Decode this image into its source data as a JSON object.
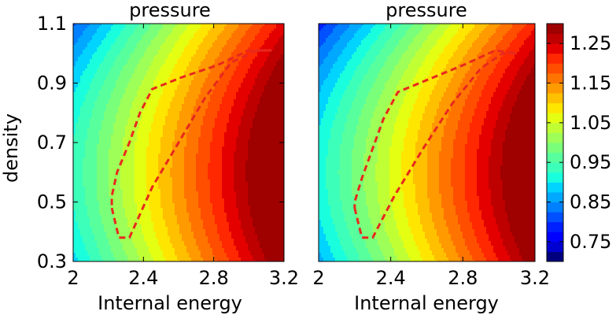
{
  "chart_data": [
    {
      "type": "heatmap",
      "subtype": "filled-contour",
      "title": "pressure",
      "xlabel": "Internal energy",
      "ylabel": "density",
      "xlim": [
        2.0,
        3.2
      ],
      "ylim": [
        0.3,
        1.1
      ],
      "xticks": [
        "2",
        "2.4",
        "2.8",
        "3.2"
      ],
      "yticks": [
        "0.3",
        "0.5",
        "0.7",
        "0.9",
        "1.1"
      ],
      "field": {
        "at_2_0": 0.9,
        "slope_x": 0.35,
        "curvature_y": 0.45,
        "center_y": 0.6,
        "offset_y": 0.03
      },
      "contour_line": {
        "style": "dashed",
        "color": "#e8281e",
        "points": [
          [
            2.22,
            0.48
          ],
          [
            2.26,
            0.38
          ],
          [
            2.32,
            0.38
          ],
          [
            2.45,
            0.55
          ],
          [
            2.6,
            0.7
          ],
          [
            2.75,
            0.85
          ],
          [
            2.9,
            0.97
          ],
          [
            3.05,
            1.01
          ],
          [
            3.13,
            1.01
          ],
          [
            3.0,
            1.01
          ],
          [
            2.82,
            0.96
          ],
          [
            2.62,
            0.92
          ],
          [
            2.45,
            0.88
          ],
          [
            2.38,
            0.8
          ],
          [
            2.32,
            0.7
          ],
          [
            2.25,
            0.6
          ],
          [
            2.22,
            0.52
          ],
          [
            2.22,
            0.48
          ]
        ]
      }
    },
    {
      "type": "heatmap",
      "subtype": "filled-contour",
      "title": "pressure",
      "xlabel": "Internal energy",
      "ylabel": "",
      "xlim": [
        2.0,
        3.2
      ],
      "ylim": [
        0.3,
        1.1
      ],
      "xticks": [
        "2",
        "2.4",
        "2.8",
        "3.2"
      ],
      "yticks": [],
      "field": {
        "at_2_0": 0.88,
        "slope_x": 0.36,
        "curvature_y": 0.5,
        "center_y": 0.6,
        "offset_y": 0.03
      },
      "contour_line": {
        "style": "dashed",
        "color": "#e8281e",
        "points": [
          [
            2.2,
            0.48
          ],
          [
            2.24,
            0.38
          ],
          [
            2.3,
            0.38
          ],
          [
            2.42,
            0.52
          ],
          [
            2.58,
            0.68
          ],
          [
            2.74,
            0.83
          ],
          [
            2.9,
            0.95
          ],
          [
            3.02,
            1.0
          ],
          [
            3.1,
            1.0
          ],
          [
            2.98,
            1.01
          ],
          [
            2.8,
            0.96
          ],
          [
            2.6,
            0.91
          ],
          [
            2.44,
            0.87
          ],
          [
            2.36,
            0.78
          ],
          [
            2.3,
            0.68
          ],
          [
            2.24,
            0.58
          ],
          [
            2.2,
            0.5
          ],
          [
            2.2,
            0.48
          ]
        ]
      }
    }
  ],
  "colorbar": {
    "ticks": [
      "0.75",
      "0.85",
      "0.95",
      "1.05",
      "1.15",
      "1.25"
    ],
    "min": 0.7,
    "max": 1.3,
    "levels": [
      {
        "value": 0.7,
        "color": "#00007f"
      },
      {
        "value": 0.725,
        "color": "#0000d0"
      },
      {
        "value": 0.75,
        "color": "#0000ff"
      },
      {
        "value": 0.775,
        "color": "#0020ff"
      },
      {
        "value": 0.8,
        "color": "#0050ff"
      },
      {
        "value": 0.825,
        "color": "#0080ff"
      },
      {
        "value": 0.85,
        "color": "#00a8ff"
      },
      {
        "value": 0.875,
        "color": "#00d4ff"
      },
      {
        "value": 0.9,
        "color": "#19ffde"
      },
      {
        "value": 0.925,
        "color": "#3cffb9"
      },
      {
        "value": 0.95,
        "color": "#58ff9d"
      },
      {
        "value": 0.975,
        "color": "#7aff7a"
      },
      {
        "value": 1.0,
        "color": "#9dff58"
      },
      {
        "value": 1.025,
        "color": "#c1ff35"
      },
      {
        "value": 1.05,
        "color": "#e4ff12"
      },
      {
        "value": 1.075,
        "color": "#ffe600"
      },
      {
        "value": 1.1,
        "color": "#ffc000"
      },
      {
        "value": 1.125,
        "color": "#ff9a00"
      },
      {
        "value": 1.15,
        "color": "#ff7400"
      },
      {
        "value": 1.175,
        "color": "#ff4e00"
      },
      {
        "value": 1.2,
        "color": "#ff2800"
      },
      {
        "value": 1.225,
        "color": "#e50000"
      },
      {
        "value": 1.25,
        "color": "#bf0000"
      },
      {
        "value": 1.275,
        "color": "#9f0000"
      }
    ]
  }
}
